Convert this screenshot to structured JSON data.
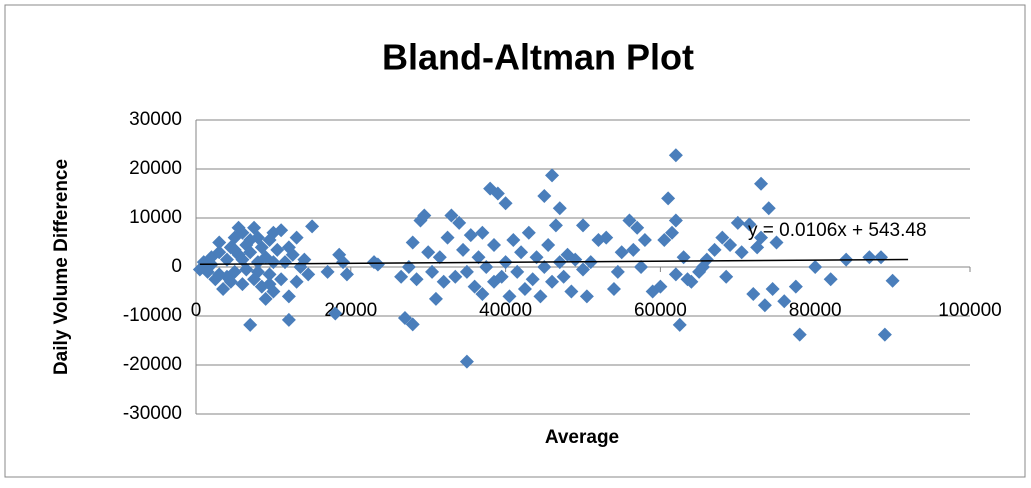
{
  "chart_data": {
    "type": "scatter",
    "title": "Bland-Altman Plot",
    "x_label": "Average",
    "y_label": "Daily Volume Difference",
    "xlim": [
      0,
      100000
    ],
    "xticks": [
      0,
      20000,
      40000,
      60000,
      80000,
      100000
    ],
    "ylim": [
      -30000,
      30000
    ],
    "yticks": [
      -30000,
      -20000,
      -10000,
      0,
      10000,
      20000,
      30000
    ],
    "grid": true,
    "series": [
      {
        "color": "#4a7ebb",
        "x": [
          500,
          1000,
          1500,
          2000,
          2500,
          3000,
          3000,
          3500,
          4000,
          4000,
          4500,
          5000,
          5000,
          5500,
          5500,
          6000,
          6000,
          6500,
          6500,
          7000,
          7000,
          7500,
          7500,
          8000,
          8000,
          8500,
          8500,
          9000,
          9000,
          9500,
          9500,
          10000,
          10000,
          10500,
          11000,
          11000,
          11500,
          12000,
          12000,
          12000,
          12500,
          13000,
          13000,
          13500,
          14000,
          14500,
          15000,
          3000,
          2000,
          4500,
          6000,
          8000,
          10000,
          5000,
          7000,
          9500,
          17000,
          18000,
          18500,
          19000,
          19500,
          23000,
          23500,
          26500,
          27000,
          27500,
          28000,
          28000,
          28500,
          29000,
          29500,
          30000,
          30500,
          31000,
          31500,
          32000,
          32500,
          33000,
          33500,
          34000,
          34500,
          35000,
          35000,
          35500,
          36000,
          36500,
          37000,
          37000,
          37500,
          38000,
          38500,
          38500,
          39000,
          39500,
          40000,
          40000,
          40500,
          41000,
          41500,
          42000,
          42500,
          43000,
          43500,
          44000,
          44500,
          45000,
          45000,
          45500,
          46000,
          46000,
          46500,
          47000,
          47000,
          47500,
          48000,
          48500,
          49000,
          50000,
          50000,
          50500,
          51000,
          52000,
          53000,
          54000,
          54500,
          55000,
          56000,
          56500,
          57000,
          57500,
          58000,
          59000,
          60000,
          60500,
          61000,
          61500,
          62000,
          62000,
          62000,
          62500,
          63000,
          63500,
          64000,
          65000,
          65500,
          66000,
          67000,
          68000,
          68500,
          69000,
          70000,
          70500,
          71500,
          72000,
          72500,
          73000,
          73000,
          73500,
          74000,
          74500,
          75000,
          76000,
          77500,
          78000,
          80000,
          82000,
          84000,
          87000,
          88500,
          89000,
          90000
        ],
        "values": [
          -500,
          1000,
          -1000,
          2000,
          -2500,
          5000,
          3000,
          -4500,
          1500,
          -2000,
          4000,
          6000,
          -1000,
          8000,
          2500,
          -3500,
          7000,
          4500,
          -500,
          -11800,
          3000,
          8000,
          -2500,
          6000,
          1000,
          -4000,
          4000,
          -6500,
          2000,
          5500,
          -1500,
          7000,
          -5000,
          3500,
          7500,
          -2500,
          1000,
          -10800,
          -6000,
          4000,
          2500,
          6000,
          -3000,
          0,
          1500,
          -1500,
          8300,
          -1500,
          500,
          -3000,
          1500,
          -1000,
          1000,
          3500,
          5500,
          -3500,
          -1000,
          -9500,
          2500,
          1000,
          -1500,
          1000,
          500,
          -2000,
          -10400,
          0,
          -11700,
          5000,
          -2500,
          9500,
          10500,
          3000,
          -1000,
          -6500,
          2000,
          -3000,
          6000,
          10500,
          -2000,
          9000,
          3500,
          -19300,
          -1000,
          6500,
          -4000,
          2000,
          -5500,
          7000,
          0,
          16000,
          -3000,
          4500,
          15000,
          -2000,
          13000,
          1000,
          -6000,
          5500,
          -1000,
          3000,
          -4500,
          7000,
          -2500,
          2000,
          -6000,
          14500,
          0,
          4500,
          18700,
          -3000,
          8500,
          12000,
          1000,
          -2000,
          2500,
          -5000,
          1500,
          8500,
          -500,
          -6000,
          1000,
          5500,
          6000,
          -4500,
          -1000,
          3000,
          9500,
          3500,
          8000,
          0,
          5500,
          -5000,
          -4000,
          5500,
          14000,
          7000,
          22800,
          9500,
          -1500,
          -11800,
          2000,
          -2500,
          -3000,
          -1000,
          0,
          1500,
          3500,
          6000,
          -2000,
          4500,
          9000,
          3000,
          8700,
          -5500,
          4000,
          17000,
          6000,
          -7800,
          12000,
          -4500,
          5000,
          -7000,
          -4000,
          -13800,
          0,
          -2500,
          1500,
          2000,
          2000,
          -13800,
          -2800
        ]
      }
    ],
    "trendline": {
      "label": "y = 0.0106x + 543.48",
      "slope": 0.0106,
      "intercept": 543.48,
      "xrange": [
        500,
        92000
      ]
    }
  }
}
